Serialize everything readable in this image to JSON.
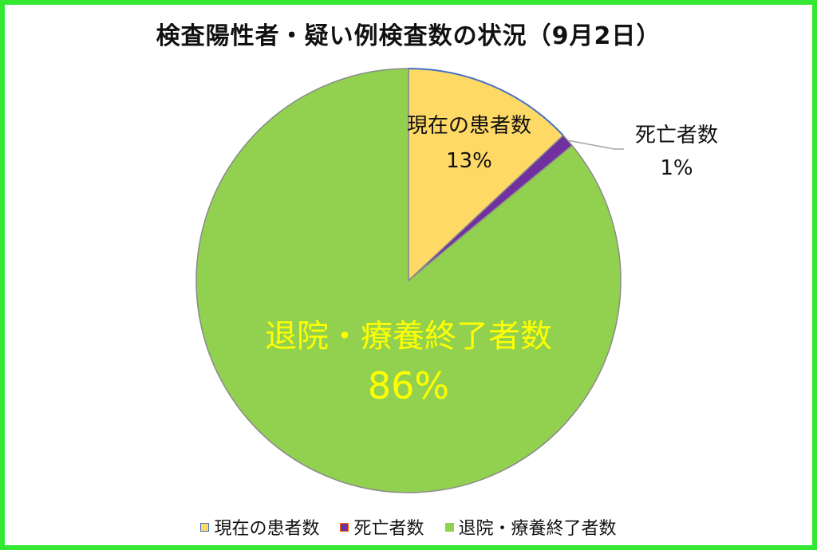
{
  "chart_data": {
    "type": "pie",
    "title": "検査陽性者・疑い例検査数の状況（9月2日）",
    "categories": [
      "現在の患者数",
      "死亡者数",
      "退院・療養終了者数"
    ],
    "values": [
      13,
      1,
      86
    ],
    "value_labels": [
      "13%",
      "1%",
      "86%"
    ],
    "colors": [
      "#ffd966",
      "#7030a0",
      "#92d050"
    ],
    "edge_colors": [
      "#4472c4",
      "#ff6600",
      "#92d050"
    ],
    "label_colors": [
      "#111111",
      "#111111",
      "#ffff00"
    ],
    "legend_position": "bottom"
  }
}
